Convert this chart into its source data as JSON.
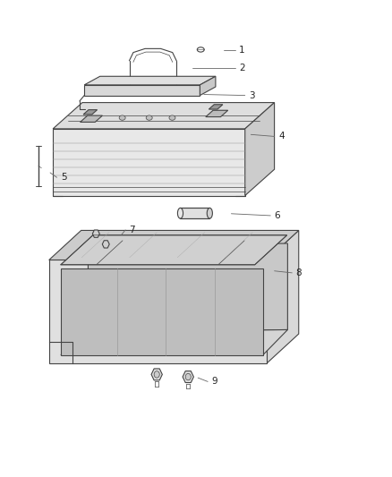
{
  "background_color": "#ffffff",
  "line_color": "#444444",
  "text_color": "#222222",
  "fig_width": 4.38,
  "fig_height": 5.33,
  "dpi": 100,
  "label_specs": [
    [
      1,
      0.57,
      0.895,
      0.61,
      0.895
    ],
    [
      2,
      0.49,
      0.858,
      0.61,
      0.858
    ],
    [
      3,
      0.52,
      0.802,
      0.635,
      0.8
    ],
    [
      4,
      0.64,
      0.718,
      0.71,
      0.714
    ],
    [
      5,
      0.128,
      0.638,
      0.155,
      0.628
    ],
    [
      6,
      0.59,
      0.552,
      0.7,
      0.548
    ],
    [
      7,
      0.31,
      0.508,
      0.33,
      0.518
    ],
    [
      8,
      0.7,
      0.432,
      0.755,
      0.428
    ],
    [
      9,
      0.505,
      0.208,
      0.54,
      0.2
    ]
  ]
}
